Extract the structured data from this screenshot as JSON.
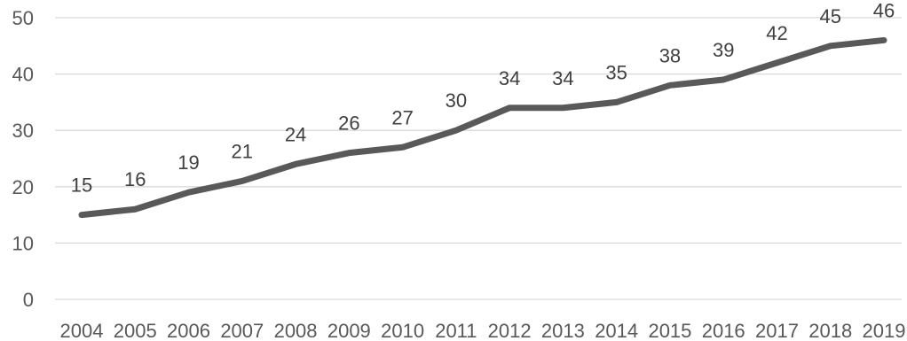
{
  "chart_data": {
    "type": "line",
    "title": "",
    "xlabel": "",
    "ylabel": "",
    "categories": [
      "2004",
      "2005",
      "2006",
      "2007",
      "2008",
      "2009",
      "2010",
      "2011",
      "2012",
      "2013",
      "2014",
      "2015",
      "2016",
      "2017",
      "2018",
      "2019"
    ],
    "series": [
      {
        "values": [
          15,
          16,
          19,
          21,
          24,
          26,
          27,
          30,
          34,
          34,
          35,
          38,
          39,
          42,
          45,
          46
        ],
        "color": "#595959"
      }
    ],
    "ylim": [
      0,
      50
    ],
    "yticks": [
      0,
      10,
      20,
      30,
      40,
      50
    ],
    "grid": "horizontal",
    "legend": "none",
    "data_labels": true
  }
}
